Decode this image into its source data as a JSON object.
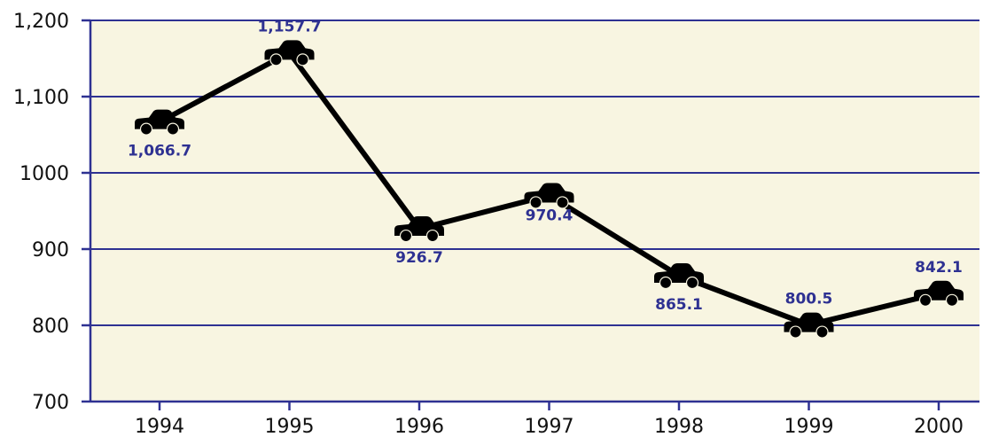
{
  "chart_data": {
    "type": "line",
    "categories": [
      "1994",
      "1995",
      "1996",
      "1997",
      "1998",
      "1999",
      "2000"
    ],
    "values": [
      1066.7,
      1157.7,
      926.7,
      970.4,
      865.1,
      800.5,
      842.1
    ],
    "data_labels": [
      "1,066.7",
      "1,157.7",
      "926.7",
      "970.4",
      "865.1",
      "800.5",
      "842.1"
    ],
    "label_positions": [
      "below",
      "above",
      "below",
      "inside",
      "below",
      "above",
      "above"
    ],
    "ylim": [
      700,
      1200
    ],
    "yticks": [
      700,
      800,
      900,
      1000,
      1100,
      1200
    ],
    "ytick_labels": [
      "700",
      "800",
      "900",
      "1000",
      "1,100",
      "1,200"
    ],
    "title": "",
    "xlabel": "",
    "ylabel": "",
    "grid": true,
    "marker": "car-icon",
    "colors": {
      "plot_background": "#f8f5e1",
      "axis": "#2e3192",
      "gridline": "#2e3192",
      "line": "#000000",
      "marker": "#000000",
      "data_label": "#2e3192"
    }
  }
}
